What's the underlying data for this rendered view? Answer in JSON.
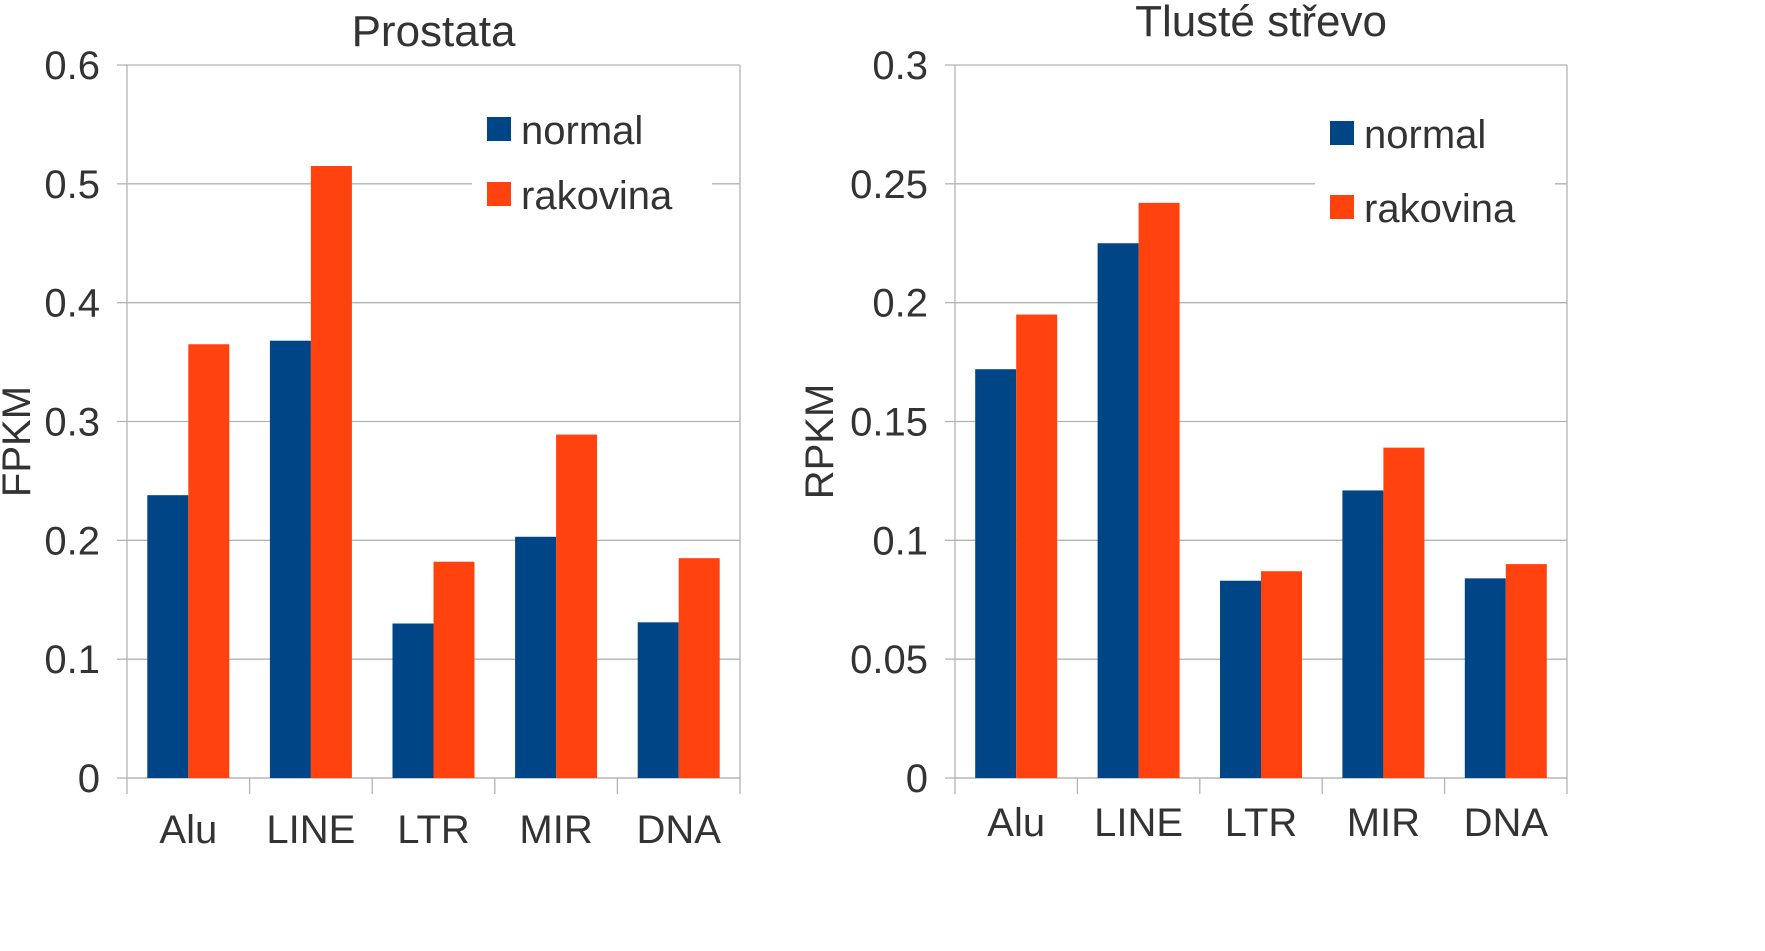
{
  "chart_data": [
    {
      "type": "bar",
      "title": "Prostata",
      "xlabel": "",
      "ylabel": "FPKM",
      "ylim": [
        0,
        0.6
      ],
      "yticks": [
        "0",
        "0.1",
        "0.2",
        "0.3",
        "0.4",
        "0.5",
        "0.6"
      ],
      "categories": [
        "Alu",
        "LINE",
        "LTR",
        "MIR",
        "DNA"
      ],
      "series": [
        {
          "name": "normal",
          "color": "#004586",
          "values": [
            0.238,
            0.368,
            0.13,
            0.203,
            0.131
          ]
        },
        {
          "name": "rakovina",
          "color": "#ff420e",
          "values": [
            0.365,
            0.515,
            0.182,
            0.289,
            0.185
          ]
        }
      ],
      "grid": true,
      "legend": "top-right"
    },
    {
      "type": "bar",
      "title": "Tlusté střevo",
      "xlabel": "",
      "ylabel": "RPKM",
      "ylim": [
        0,
        0.3
      ],
      "yticks": [
        "0",
        "0.05",
        "0.1",
        "0.15",
        "0.2",
        "0.25",
        "0.3"
      ],
      "categories": [
        "Alu",
        "LINE",
        "LTR",
        "MIR",
        "DNA"
      ],
      "series": [
        {
          "name": "normal",
          "color": "#004586",
          "values": [
            0.172,
            0.225,
            0.083,
            0.121,
            0.084
          ]
        },
        {
          "name": "rakovina",
          "color": "#ff420e",
          "values": [
            0.195,
            0.242,
            0.087,
            0.139,
            0.09
          ]
        }
      ],
      "grid": true,
      "legend": "top-right"
    }
  ]
}
